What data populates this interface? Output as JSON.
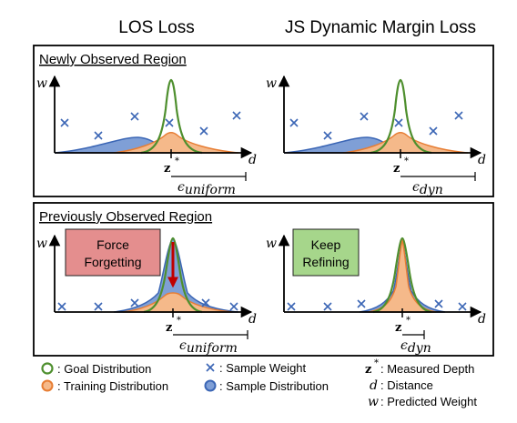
{
  "column_titles": {
    "left": "LOS Loss",
    "right": "JS Dynamic Margin Loss"
  },
  "sections": {
    "top": "Newly Observed Region",
    "bottom": "Previously Observed Region"
  },
  "axes": {
    "y": "w",
    "x": "d",
    "depth_label": "z",
    "depth_sup": "*"
  },
  "margins": {
    "uniform": "ϵ",
    "uniform_sub": "uniform",
    "dyn": "ϵ",
    "dyn_sub": "dyn"
  },
  "callouts": {
    "force": [
      "Force",
      "Forgetting"
    ],
    "keep": [
      "Keep",
      "Refining"
    ]
  },
  "legend": {
    "goal": ": Goal Distribution",
    "training": ": Training Distribution",
    "sample_weight": ": Sample Weight",
    "sample_dist": ": Sample Distribution",
    "z_sym": "z",
    "z_sup": "*",
    "z_text": ": Measured Depth",
    "d_sym": "d",
    "d_text": ": Distance",
    "w_sym": "w",
    "w_text": ": Predicted Weight"
  },
  "colors": {
    "goal": "#4e8f2e",
    "training_fill": "#f5b98a",
    "training_stroke": "#e77d33",
    "sample_fill": "#7f9fd6",
    "sample_stroke": "#3b66b5",
    "cross": "#3b66b5",
    "force_box": "#e48e8e",
    "keep_box": "#a6d68b",
    "arrow": "#c00000"
  }
}
